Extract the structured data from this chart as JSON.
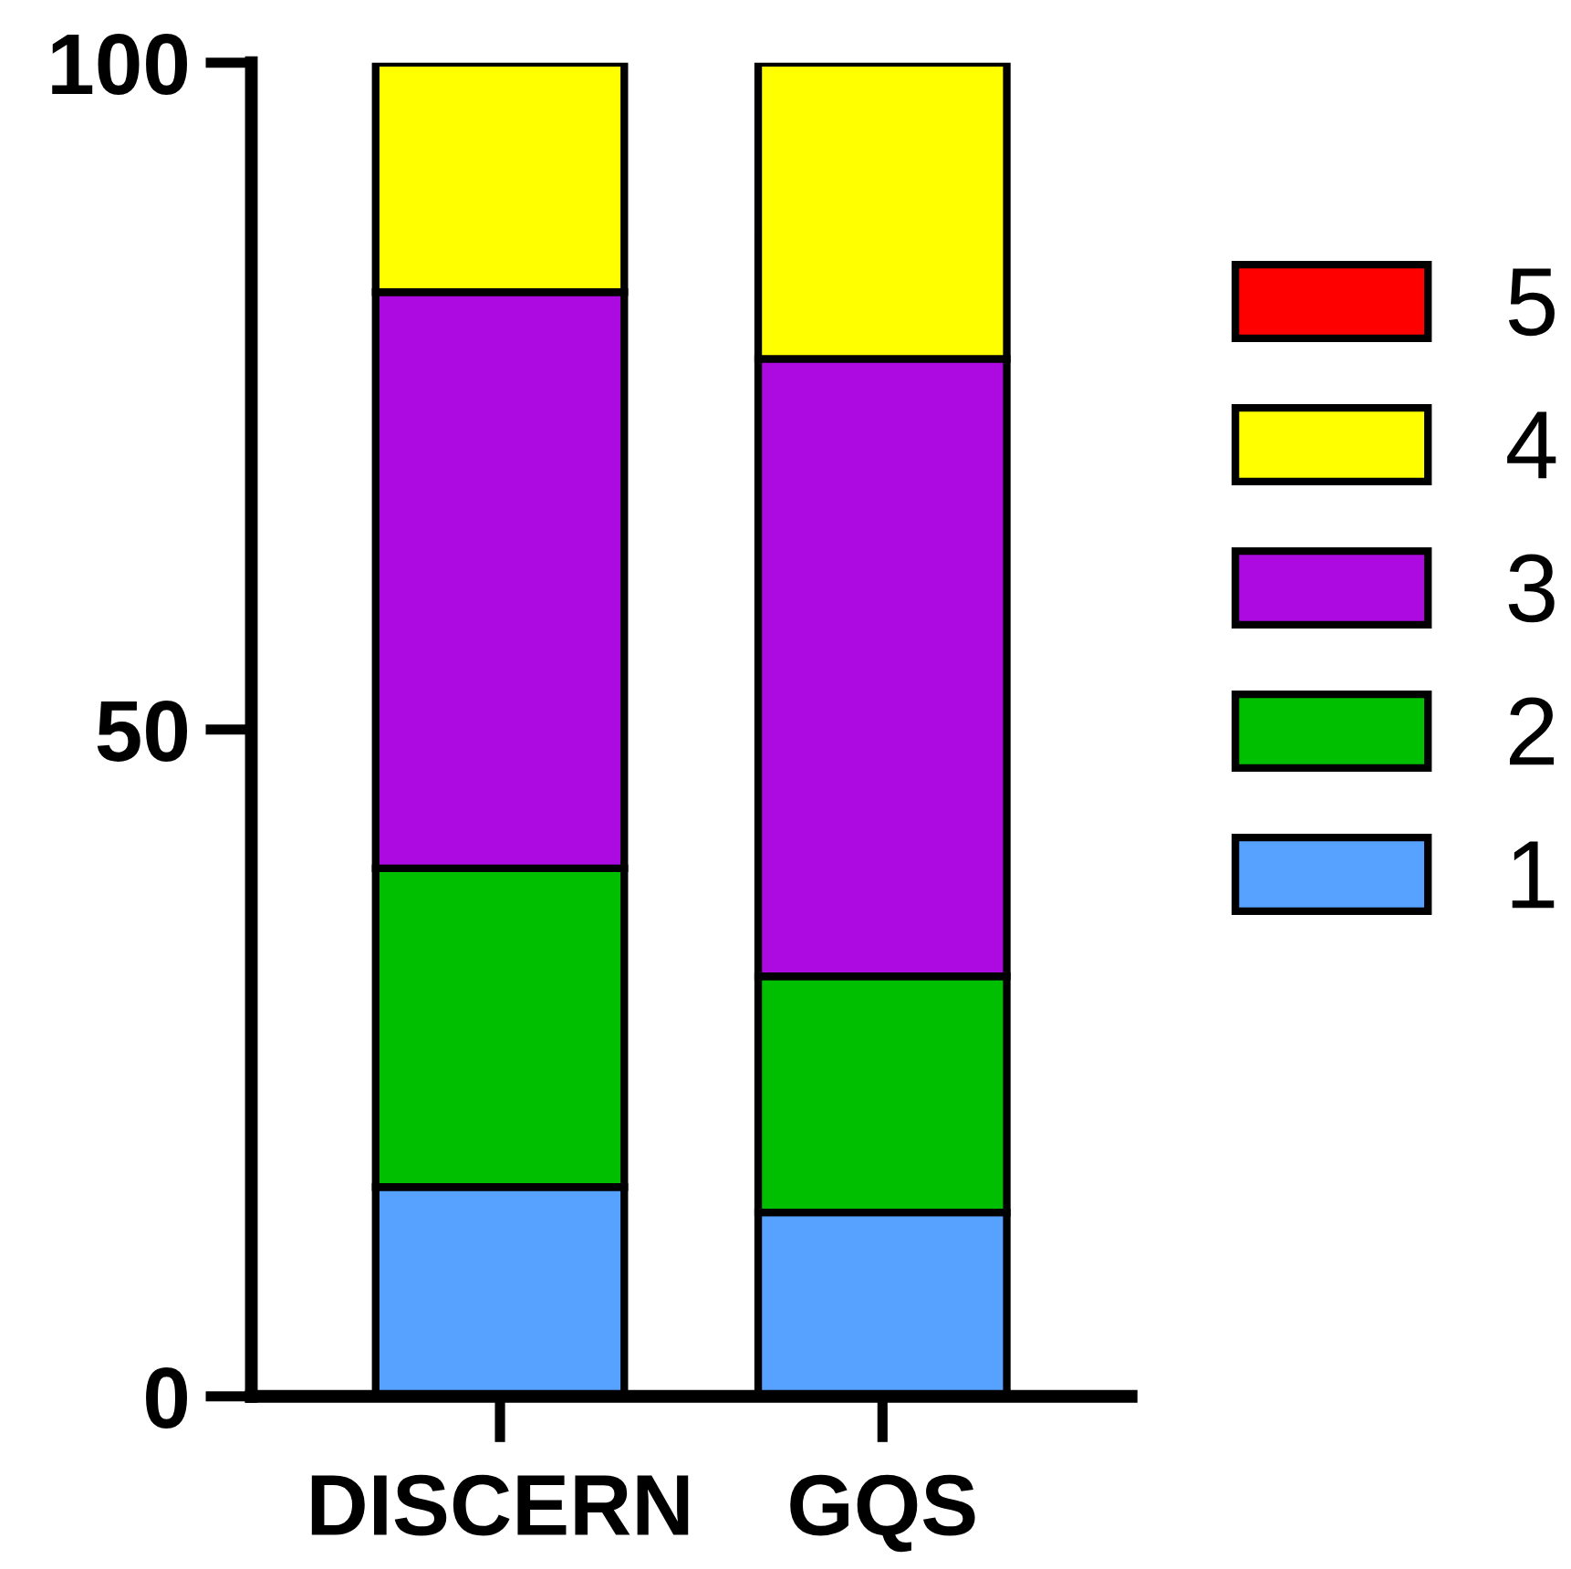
{
  "chart_data": {
    "type": "bar",
    "stacked": true,
    "categories": [
      "DISCERN",
      "GQS"
    ],
    "series": [
      {
        "name": "1",
        "color": "#58a2ff",
        "values": [
          15.7,
          13.8
        ]
      },
      {
        "name": "2",
        "color": "#00bf00",
        "values": [
          23.9,
          17.7
        ]
      },
      {
        "name": "3",
        "color": "#ad0ae1",
        "values": [
          43.2,
          46.3
        ]
      },
      {
        "name": "4",
        "color": "#ffff00",
        "values": [
          17.2,
          22.2
        ]
      },
      {
        "name": "5",
        "color": "#ff0000",
        "values": [
          0,
          0
        ]
      }
    ],
    "ylim": [
      0,
      100
    ],
    "yticks": [
      0,
      50,
      100
    ],
    "grid": false,
    "legend": "right"
  }
}
